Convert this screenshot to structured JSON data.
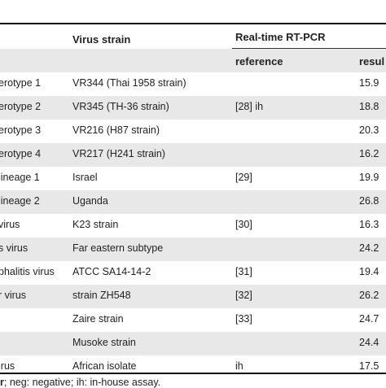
{
  "header": {
    "strain": "Virus strain",
    "rtpcr": "Real-time RT-PCR",
    "reference": "reference",
    "result": "resul"
  },
  "rows": [
    {
      "virus": "erotype 1",
      "strain": "VR344 (Thai 1958 strain)",
      "reference": "",
      "result": "15.9"
    },
    {
      "virus": "erotype 2",
      "strain": "VR345 (TH-36 strain)",
      "reference": "[28] ih",
      "result": "18.8"
    },
    {
      "virus": "erotype 3",
      "strain": "VR216 (H87 strain)",
      "reference": "",
      "result": "20.3"
    },
    {
      "virus": "erotype 4",
      "strain": "VR217 (H241 strain)",
      "reference": "",
      "result": "16.2"
    },
    {
      "virus": "lineage 1",
      "strain": "Israel",
      "reference": "[29]",
      "result": "19.9"
    },
    {
      "virus": "lineage 2",
      "strain": "Uganda",
      "reference": "",
      "result": "26.8"
    },
    {
      "virus": "virus",
      "strain": "K23 strain",
      "reference": "[30]",
      "result": "16.3"
    },
    {
      "virus": "s virus",
      "strain": "Far eastern subtype",
      "reference": "",
      "result": "24.2"
    },
    {
      "virus": "phalitis virus",
      "strain": "ATCC SA14-14-2",
      "reference": "[31]",
      "result": "19.4"
    },
    {
      "virus": "r virus",
      "strain": "strain ZH548",
      "reference": "[32]",
      "result": "26.2"
    },
    {
      "virus": "",
      "strain": "Zaire strain",
      "reference": "[33]",
      "result": "24.7"
    },
    {
      "virus": "",
      "strain": "Musoke strain",
      "reference": "",
      "result": "24.4"
    },
    {
      "virus": "irus",
      "strain": "African isolate",
      "reference": "ih",
      "result": "17.5"
    }
  ],
  "footnote": {
    "bold": "r",
    "text": "; neg: negative; ih: in-house assay."
  }
}
